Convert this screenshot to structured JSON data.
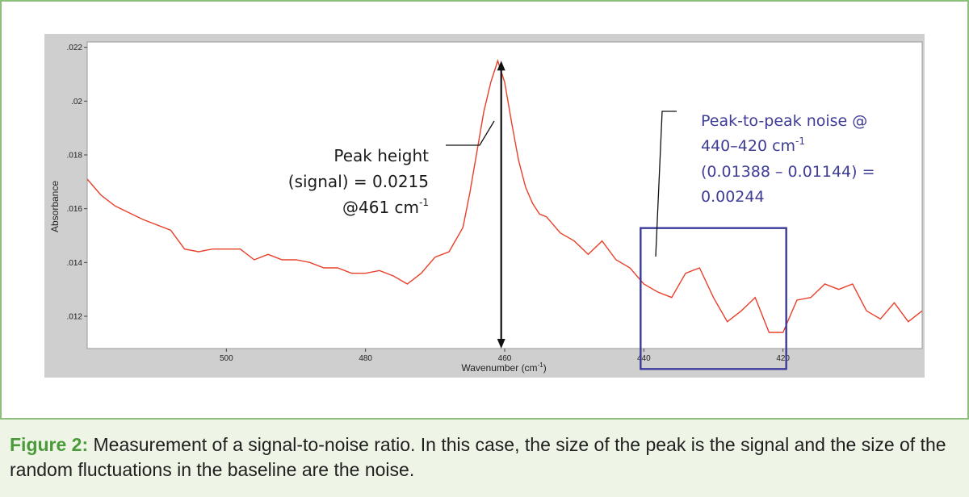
{
  "chart_data": {
    "type": "line",
    "xlabel": "Wavenumber (cm",
    "xlabel_sup": "-1",
    "xlabel_end": ")",
    "ylabel": "Absorbance",
    "xlim": [
      520,
      400
    ],
    "x_reversed": true,
    "ylim": [
      0.0108,
      0.0222
    ],
    "x_ticks": [
      500,
      480,
      460,
      440,
      420
    ],
    "x_tick_labels": [
      "500",
      "480",
      "460",
      "440",
      "420"
    ],
    "y_ticks": [
      0.022,
      0.02,
      0.018,
      0.016,
      0.014,
      0.012
    ],
    "y_tick_labels": [
      ".022",
      ".02",
      ".018",
      ".016",
      ".014",
      ".012"
    ],
    "grid": false,
    "series": [
      {
        "color": "#e8402a",
        "x": [
          520,
          518,
          516,
          512,
          508,
          506,
          504,
          502,
          500,
          498,
          496,
          494,
          492,
          490,
          488,
          486,
          484,
          482,
          480,
          478,
          476,
          474,
          472,
          470,
          468,
          466,
          465,
          464,
          463,
          462,
          461,
          460,
          459,
          458,
          457,
          456,
          455,
          454,
          452,
          450,
          448,
          446,
          444,
          442,
          440,
          438,
          436,
          434,
          432,
          430,
          428,
          426,
          424,
          422,
          421,
          420,
          418,
          416,
          414,
          412,
          410,
          408,
          406,
          404,
          402,
          400
        ],
        "y": [
          0.0171,
          0.0165,
          0.0161,
          0.0156,
          0.0152,
          0.0145,
          0.0144,
          0.0145,
          0.0145,
          0.0145,
          0.0141,
          0.0143,
          0.0141,
          0.0141,
          0.014,
          0.0138,
          0.0138,
          0.0136,
          0.0136,
          0.0137,
          0.0135,
          0.0132,
          0.0136,
          0.0142,
          0.0144,
          0.0153,
          0.0166,
          0.0181,
          0.0196,
          0.0207,
          0.0215,
          0.0207,
          0.0192,
          0.0178,
          0.0168,
          0.0162,
          0.0158,
          0.0157,
          0.0151,
          0.0148,
          0.0143,
          0.0148,
          0.0141,
          0.0138,
          0.0132,
          0.0129,
          0.0127,
          0.0136,
          0.0138,
          0.0127,
          0.0118,
          0.0122,
          0.0127,
          0.0114,
          0.0114,
          0.0114,
          0.0126,
          0.0127,
          0.0132,
          0.013,
          0.0132,
          0.0122,
          0.0119,
          0.0125,
          0.0118,
          0.0122
        ]
      }
    ],
    "annotations": {
      "peak_arrow": {
        "x": 460.5,
        "y_top": 0.0215,
        "y_bottom": 0.0108
      },
      "noise_box": {
        "x_from": 440,
        "x_to": 420,
        "y_min": 0.01144,
        "y_max": 0.01388
      },
      "peak_text": [
        "Peak height",
        "(signal) = 0.0215",
        "@461 cm"
      ],
      "peak_text_sup": "-1",
      "noise_text": [
        "Peak-to-peak noise @",
        "440–420 cm",
        "(0.01388 – 0.01144) =",
        "0.00244"
      ],
      "noise_text_sup": "-1"
    }
  },
  "caption": {
    "label": "Figure 2:",
    "text": " Measurement of a signal-to-noise ratio. In this case, the size of the peak is the signal and the size of the random fluctuations in the baseline are the noise."
  },
  "colors": {
    "line": "#e8402a",
    "noise_box": "#3a3a9c",
    "frame": "#8cc07a",
    "caption_label": "#4a9a3a"
  }
}
